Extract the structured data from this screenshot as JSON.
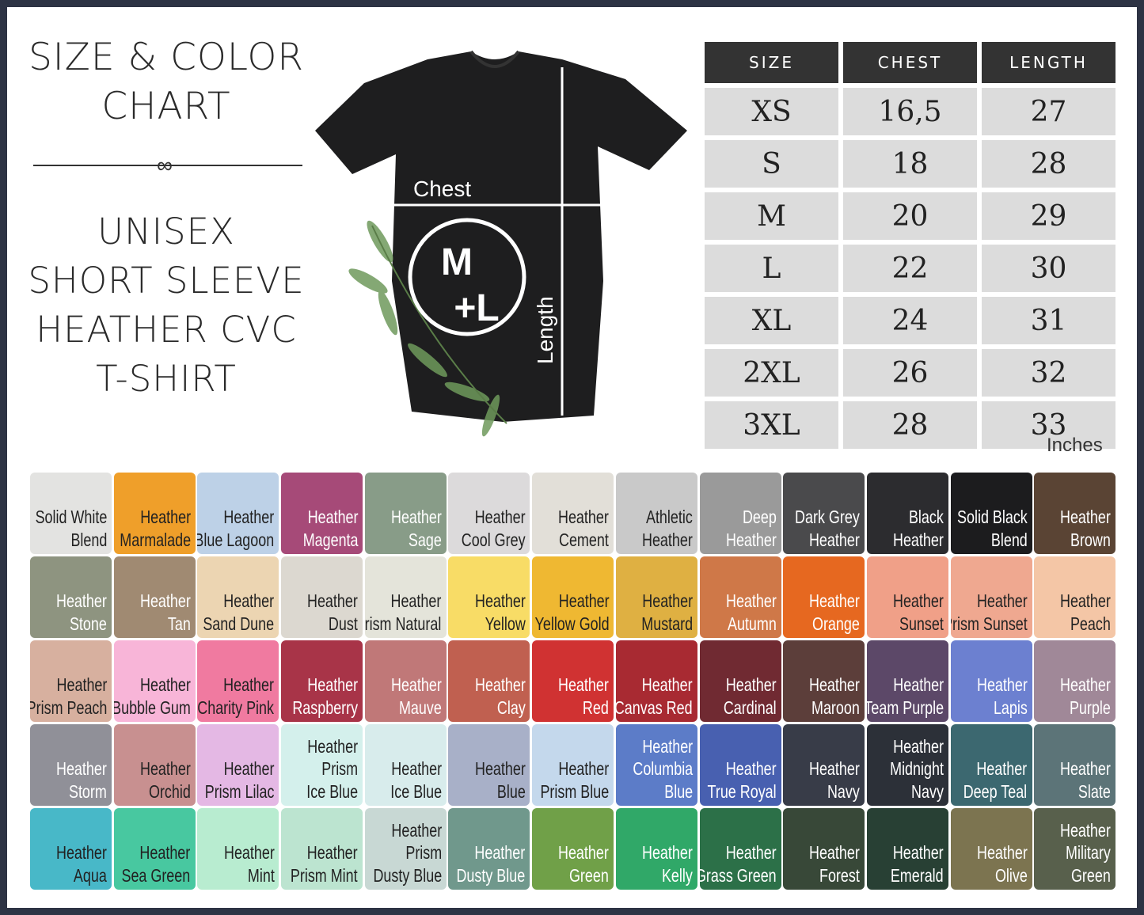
{
  "title": {
    "line1": "SIZE & COLOR",
    "line2": "CHART"
  },
  "product": {
    "lines": [
      "UNISEX",
      "SHORT SLEEVE",
      "HEATHER CVC",
      "T-SHIRT"
    ]
  },
  "diagram": {
    "chest_label": "Chest",
    "length_label": "Length",
    "logo_top": "M",
    "logo_bottom": "+L"
  },
  "size_table": {
    "headers": [
      "SIZE",
      "CHEST",
      "LENGTH"
    ],
    "rows": [
      [
        "XS",
        "16,5",
        "27"
      ],
      [
        "S",
        "18",
        "28"
      ],
      [
        "M",
        "20",
        "29"
      ],
      [
        "L",
        "22",
        "30"
      ],
      [
        "XL",
        "24",
        "31"
      ],
      [
        "2XL",
        "26",
        "32"
      ],
      [
        "3XL",
        "28",
        "33"
      ]
    ],
    "units": "Inches"
  },
  "swatches": [
    {
      "lines": [
        "Solid White",
        "Blend"
      ],
      "color": "#e3e3e1",
      "text": "#222"
    },
    {
      "lines": [
        "Heather",
        "Marmalade"
      ],
      "color": "#ef9f2a",
      "text": "#222"
    },
    {
      "lines": [
        "Heather",
        "Blue Lagoon"
      ],
      "color": "#bdd1e7",
      "text": "#222"
    },
    {
      "lines": [
        "Heather",
        "Magenta"
      ],
      "color": "#a64a78",
      "text": "#fff"
    },
    {
      "lines": [
        "Heather",
        "Sage"
      ],
      "color": "#889c88",
      "text": "#fff"
    },
    {
      "lines": [
        "Heather",
        "Cool Grey"
      ],
      "color": "#dcdadb",
      "text": "#222"
    },
    {
      "lines": [
        "Heather",
        "Cement"
      ],
      "color": "#e2dfd8",
      "text": "#222"
    },
    {
      "lines": [
        "Athletic",
        "Heather"
      ],
      "color": "#c9c9c9",
      "text": "#222"
    },
    {
      "lines": [
        "Deep",
        "Heather"
      ],
      "color": "#9a9a9a",
      "text": "#fff"
    },
    {
      "lines": [
        "Dark Grey",
        "Heather"
      ],
      "color": "#4a4a4c",
      "text": "#fff"
    },
    {
      "lines": [
        "Black",
        "Heather"
      ],
      "color": "#2c2c2f",
      "text": "#fff"
    },
    {
      "lines": [
        "Solid Black",
        "Blend"
      ],
      "color": "#1c1c1e",
      "text": "#fff"
    },
    {
      "lines": [
        "Heather",
        "Brown"
      ],
      "color": "#5a4434",
      "text": "#fff"
    },
    {
      "lines": [
        "Heather",
        "Stone"
      ],
      "color": "#8e9480",
      "text": "#fff"
    },
    {
      "lines": [
        "Heather",
        "Tan"
      ],
      "color": "#a08a72",
      "text": "#fff"
    },
    {
      "lines": [
        "Heather",
        "Sand Dune"
      ],
      "color": "#ecd5b2",
      "text": "#222"
    },
    {
      "lines": [
        "Heather",
        "Dust"
      ],
      "color": "#dcd8d0",
      "text": "#222"
    },
    {
      "lines": [
        "Heather",
        "Prism Natural"
      ],
      "color": "#e4e4da",
      "text": "#222"
    },
    {
      "lines": [
        "Heather",
        "Yellow"
      ],
      "color": "#f8dc66",
      "text": "#222"
    },
    {
      "lines": [
        "Heather",
        "Yellow Gold"
      ],
      "color": "#efb832",
      "text": "#222"
    },
    {
      "lines": [
        "Heather",
        "Mustard"
      ],
      "color": "#dfb042",
      "text": "#222"
    },
    {
      "lines": [
        "Heather",
        "Autumn"
      ],
      "color": "#cf7848",
      "text": "#fff"
    },
    {
      "lines": [
        "Heather",
        "Orange"
      ],
      "color": "#e66820",
      "text": "#fff"
    },
    {
      "lines": [
        "Heather",
        "Sunset"
      ],
      "color": "#f0a088",
      "text": "#222"
    },
    {
      "lines": [
        "Heather",
        "Prism Sunset"
      ],
      "color": "#efa890",
      "text": "#222"
    },
    {
      "lines": [
        "Heather",
        "Peach"
      ],
      "color": "#f4c6a6",
      "text": "#222"
    },
    {
      "lines": [
        "Heather",
        "Prism Peach"
      ],
      "color": "#d7b09f",
      "text": "#222"
    },
    {
      "lines": [
        "Heather",
        "Bubble Gum"
      ],
      "color": "#f8b5d8",
      "text": "#222"
    },
    {
      "lines": [
        "Heather",
        "Charity Pink"
      ],
      "color": "#f07aa0",
      "text": "#222"
    },
    {
      "lines": [
        "Heather",
        "Raspberry"
      ],
      "color": "#a83448",
      "text": "#fff"
    },
    {
      "lines": [
        "Heather",
        "Mauve"
      ],
      "color": "#c07878",
      "text": "#fff"
    },
    {
      "lines": [
        "Heather",
        "Clay"
      ],
      "color": "#c06050",
      "text": "#fff"
    },
    {
      "lines": [
        "Heather",
        "Red"
      ],
      "color": "#d03232",
      "text": "#fff"
    },
    {
      "lines": [
        "Heather",
        "Canvas Red"
      ],
      "color": "#a82a32",
      "text": "#fff"
    },
    {
      "lines": [
        "Heather",
        "Cardinal"
      ],
      "color": "#702a32",
      "text": "#fff"
    },
    {
      "lines": [
        "Heather",
        "Maroon"
      ],
      "color": "#5c3e3a",
      "text": "#fff"
    },
    {
      "lines": [
        "Heather",
        "Team Purple"
      ],
      "color": "#5c4868",
      "text": "#fff"
    },
    {
      "lines": [
        "Heather",
        "Lapis"
      ],
      "color": "#6c80d0",
      "text": "#fff"
    },
    {
      "lines": [
        "Heather",
        "Purple"
      ],
      "color": "#a08898",
      "text": "#fff"
    },
    {
      "lines": [
        "Heather",
        "Storm"
      ],
      "color": "#909098",
      "text": "#fff"
    },
    {
      "lines": [
        "Heather",
        "Orchid"
      ],
      "color": "#c89090",
      "text": "#222"
    },
    {
      "lines": [
        "Heather",
        "Prism Lilac"
      ],
      "color": "#e4b8e4",
      "text": "#222"
    },
    {
      "lines": [
        "Heather",
        "Prism",
        "Ice Blue"
      ],
      "color": "#d4f0ec",
      "text": "#222"
    },
    {
      "lines": [
        "Heather",
        "Ice Blue"
      ],
      "color": "#d8ecec",
      "text": "#222"
    },
    {
      "lines": [
        "Heather",
        "Blue"
      ],
      "color": "#a8b0c8",
      "text": "#222"
    },
    {
      "lines": [
        "Heather",
        "Prism Blue"
      ],
      "color": "#c4d8ec",
      "text": "#222"
    },
    {
      "lines": [
        "Heather",
        "Columbia",
        "Blue"
      ],
      "color": "#5c7cc8",
      "text": "#fff"
    },
    {
      "lines": [
        "Heather",
        "True Royal"
      ],
      "color": "#4860b0",
      "text": "#fff"
    },
    {
      "lines": [
        "Heather",
        "Navy"
      ],
      "color": "#383c48",
      "text": "#fff"
    },
    {
      "lines": [
        "Heather",
        "Midnight",
        "Navy"
      ],
      "color": "#2c3038",
      "text": "#fff"
    },
    {
      "lines": [
        "Heather",
        "Deep Teal"
      ],
      "color": "#3c6870",
      "text": "#fff"
    },
    {
      "lines": [
        "Heather",
        "Slate"
      ],
      "color": "#5c7478",
      "text": "#fff"
    },
    {
      "lines": [
        "Heather",
        "Aqua"
      ],
      "color": "#48b8c8",
      "text": "#222"
    },
    {
      "lines": [
        "Heather",
        "Sea Green"
      ],
      "color": "#48c8a0",
      "text": "#222"
    },
    {
      "lines": [
        "Heather",
        "Mint"
      ],
      "color": "#b8ecd0",
      "text": "#222"
    },
    {
      "lines": [
        "Heather",
        "Prism Mint"
      ],
      "color": "#bce4d0",
      "text": "#222"
    },
    {
      "lines": [
        "Heather",
        "Prism",
        "Dusty Blue"
      ],
      "color": "#c8d8d4",
      "text": "#222"
    },
    {
      "lines": [
        "Heather",
        "Dusty Blue"
      ],
      "color": "#70988c",
      "text": "#fff"
    },
    {
      "lines": [
        "Heather",
        "Green"
      ],
      "color": "#70a048",
      "text": "#fff"
    },
    {
      "lines": [
        "Heather",
        "Kelly"
      ],
      "color": "#30a868",
      "text": "#fff"
    },
    {
      "lines": [
        "Heather",
        "Grass Green"
      ],
      "color": "#2c7048",
      "text": "#fff"
    },
    {
      "lines": [
        "Heather",
        "Forest"
      ],
      "color": "#384838",
      "text": "#fff"
    },
    {
      "lines": [
        "Heather",
        "Emerald"
      ],
      "color": "#284034",
      "text": "#fff"
    },
    {
      "lines": [
        "Heather",
        "Olive"
      ],
      "color": "#7c7450",
      "text": "#fff"
    },
    {
      "lines": [
        "Heather",
        "Military",
        "Green"
      ],
      "color": "#58604c",
      "text": "#fff"
    }
  ]
}
